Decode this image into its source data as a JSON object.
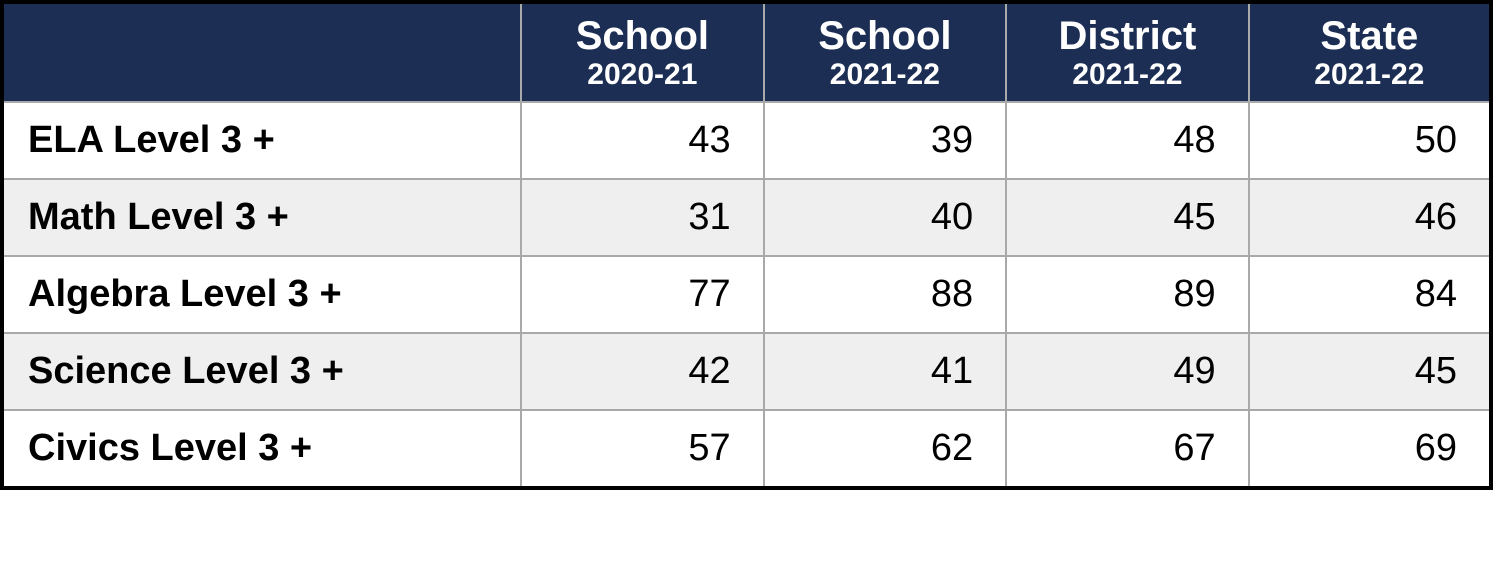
{
  "table": {
    "type": "table",
    "header_bg": "#1c2e54",
    "header_fg": "#ffffff",
    "grid_color": "#a9a9a9",
    "outer_border_color": "#000000",
    "row_bg_even": "#ffffff",
    "row_bg_odd": "#efefef",
    "text_color": "#000000",
    "label_fontsize": 38,
    "cell_fontsize": 38,
    "header_line1_fontsize": 40,
    "header_line2_fontsize": 30,
    "label_align": "left",
    "cell_align": "right",
    "label_col_width": 520,
    "data_col_width": 243,
    "columns": [
      {
        "line1": "School",
        "line2": "2020-21"
      },
      {
        "line1": "School",
        "line2": "2021-22"
      },
      {
        "line1": "District",
        "line2": "2021-22"
      },
      {
        "line1": "State",
        "line2": "2021-22"
      }
    ],
    "rows": [
      {
        "label": "ELA Level 3 +",
        "values": [
          43,
          39,
          48,
          50
        ]
      },
      {
        "label": "Math Level 3 +",
        "values": [
          31,
          40,
          45,
          46
        ]
      },
      {
        "label": "Algebra Level 3 +",
        "values": [
          77,
          88,
          89,
          84
        ]
      },
      {
        "label": "Science Level 3 +",
        "values": [
          42,
          41,
          49,
          45
        ]
      },
      {
        "label": "Civics Level 3 +",
        "values": [
          57,
          62,
          67,
          69
        ]
      }
    ]
  }
}
